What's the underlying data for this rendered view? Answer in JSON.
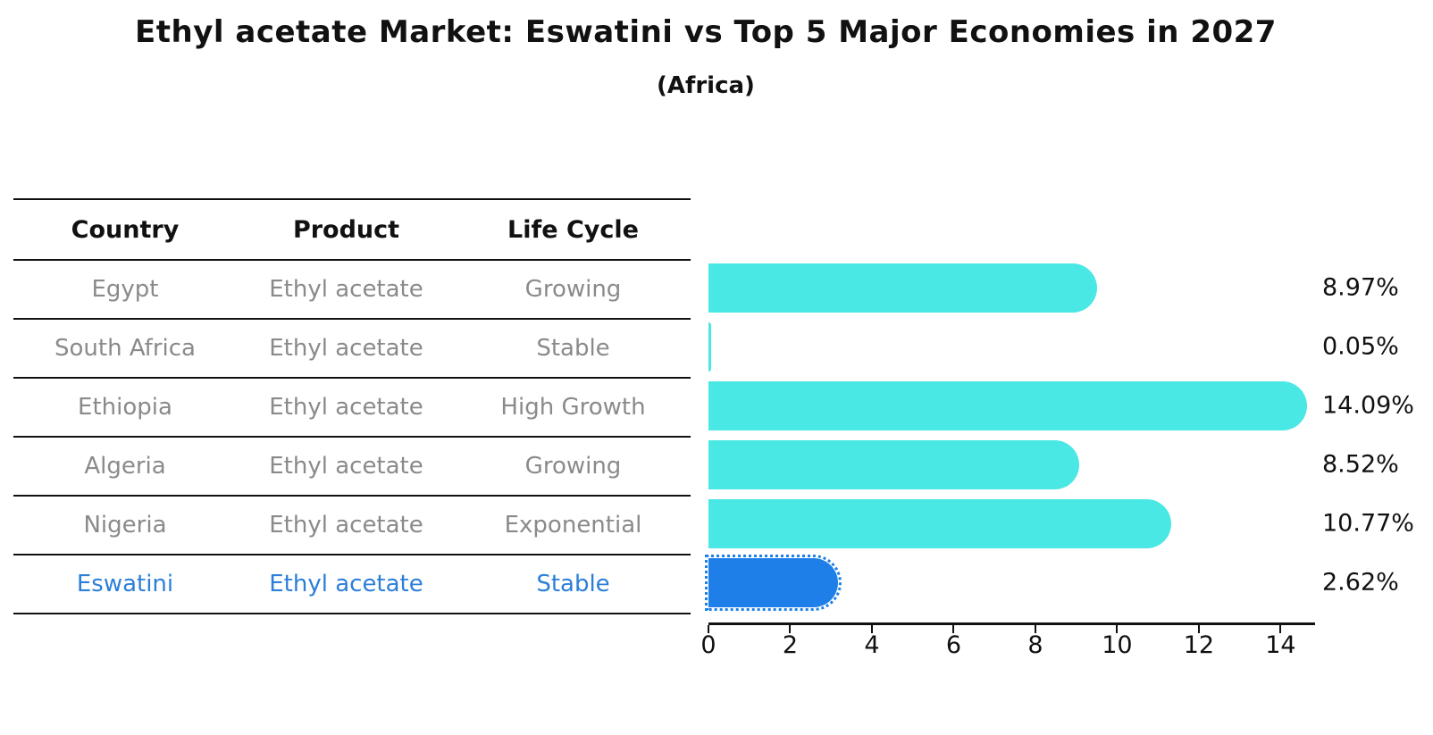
{
  "title": "Ethyl acetate Market: Eswatini vs Top 5 Major Economies in 2027",
  "subtitle": "(Africa)",
  "table": {
    "headers": [
      "Country",
      "Product",
      "Life Cycle"
    ],
    "rows": [
      {
        "country": "Egypt",
        "product": "Ethyl acetate",
        "life_cycle": "Growing"
      },
      {
        "country": "South Africa",
        "product": "Ethyl acetate",
        "life_cycle": "Stable"
      },
      {
        "country": "Ethiopia",
        "product": "Ethyl acetate",
        "life_cycle": "High Growth"
      },
      {
        "country": "Algeria",
        "product": "Ethyl acetate",
        "life_cycle": "Growing"
      },
      {
        "country": "Nigeria",
        "product": "Ethyl acetate",
        "life_cycle": "Exponential"
      },
      {
        "country": "Eswatini",
        "product": "Ethyl acetate",
        "life_cycle": "Stable"
      }
    ]
  },
  "chart_data": {
    "type": "bar",
    "orientation": "horizontal",
    "title": "Ethyl acetate Market: Eswatini vs Top 5 Major Economies in 2027",
    "subtitle": "(Africa)",
    "categories": [
      "Egypt",
      "South Africa",
      "Ethiopia",
      "Algeria",
      "Nigeria",
      "Eswatini"
    ],
    "values": [
      8.97,
      0.05,
      14.09,
      8.52,
      10.77,
      2.62
    ],
    "value_labels": [
      "8.97%",
      "0.05%",
      "14.09%",
      "8.52%",
      "10.77%",
      "2.62%"
    ],
    "xlabel": "",
    "ylabel": "",
    "xlim": [
      0,
      14.8
    ],
    "x_ticks": [
      0,
      2,
      4,
      6,
      8,
      10,
      12,
      14
    ],
    "grid": false,
    "legend": false,
    "highlight_index": 5,
    "colors": {
      "bar": "#4AE8E4",
      "highlight_bar": "#1E7FE8",
      "highlight_text": "#2B7FD9",
      "row_text": "#8A8A8A",
      "header_text": "#111111",
      "axis": "#111111"
    }
  }
}
